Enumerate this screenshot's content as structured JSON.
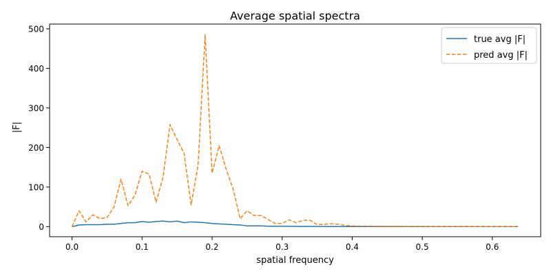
{
  "chart_data": {
    "type": "line",
    "title": "Average spatial spectra",
    "xlabel": "spatial frequency",
    "ylabel": "|F|",
    "xlim": [
      -0.032,
      0.669
    ],
    "ylim": [
      -25.5,
      512.0
    ],
    "xticks": [
      0.0,
      0.1,
      0.2,
      0.3,
      0.4,
      0.5,
      0.6
    ],
    "xtick_labels": [
      "0.0",
      "0.1",
      "0.2",
      "0.3",
      "0.4",
      "0.5",
      "0.6"
    ],
    "yticks": [
      0,
      100,
      200,
      300,
      400,
      500
    ],
    "ytick_labels": [
      "0",
      "100",
      "200",
      "300",
      "400",
      "500"
    ],
    "grid": false,
    "legend_position": "top-right",
    "series": [
      {
        "name": "true avg |F|",
        "color": "#1f77b4",
        "style": "solid",
        "points": [
          [
            0.0,
            0
          ],
          [
            0.01,
            4
          ],
          [
            0.02,
            5
          ],
          [
            0.03,
            5
          ],
          [
            0.04,
            5
          ],
          [
            0.05,
            6
          ],
          [
            0.06,
            6
          ],
          [
            0.07,
            8
          ],
          [
            0.08,
            10
          ],
          [
            0.09,
            10
          ],
          [
            0.1,
            13
          ],
          [
            0.11,
            11
          ],
          [
            0.12,
            13
          ],
          [
            0.13,
            14
          ],
          [
            0.14,
            12
          ],
          [
            0.15,
            14
          ],
          [
            0.16,
            10
          ],
          [
            0.17,
            12
          ],
          [
            0.18,
            11
          ],
          [
            0.19,
            10
          ],
          [
            0.2,
            8
          ],
          [
            0.21,
            7
          ],
          [
            0.22,
            6
          ],
          [
            0.23,
            5
          ],
          [
            0.24,
            4
          ],
          [
            0.25,
            2
          ],
          [
            0.26,
            2
          ],
          [
            0.27,
            2
          ],
          [
            0.28,
            1
          ],
          [
            0.29,
            1
          ],
          [
            0.3,
            1
          ],
          [
            0.32,
            0.5
          ],
          [
            0.35,
            0.3
          ],
          [
            0.4,
            0.2
          ],
          [
            0.5,
            0.1
          ],
          [
            0.637,
            0.1
          ]
        ]
      },
      {
        "name": "pred avg |F|",
        "color": "#ff7f0e",
        "style": "dashed",
        "points": [
          [
            0.0,
            0
          ],
          [
            0.01,
            40
          ],
          [
            0.02,
            12
          ],
          [
            0.03,
            30
          ],
          [
            0.04,
            20
          ],
          [
            0.05,
            23
          ],
          [
            0.06,
            50
          ],
          [
            0.07,
            120
          ],
          [
            0.08,
            53
          ],
          [
            0.09,
            80
          ],
          [
            0.1,
            140
          ],
          [
            0.11,
            133
          ],
          [
            0.12,
            62
          ],
          [
            0.13,
            125
          ],
          [
            0.14,
            258
          ],
          [
            0.15,
            220
          ],
          [
            0.16,
            185
          ],
          [
            0.17,
            55
          ],
          [
            0.18,
            155
          ],
          [
            0.19,
            485
          ],
          [
            0.2,
            135
          ],
          [
            0.21,
            205
          ],
          [
            0.22,
            145
          ],
          [
            0.23,
            95
          ],
          [
            0.24,
            20
          ],
          [
            0.25,
            40
          ],
          [
            0.26,
            28
          ],
          [
            0.27,
            28
          ],
          [
            0.28,
            18
          ],
          [
            0.29,
            8
          ],
          [
            0.3,
            8
          ],
          [
            0.31,
            17
          ],
          [
            0.32,
            10
          ],
          [
            0.33,
            16
          ],
          [
            0.34,
            16
          ],
          [
            0.35,
            5
          ],
          [
            0.36,
            6
          ],
          [
            0.37,
            7
          ],
          [
            0.38,
            6
          ],
          [
            0.39,
            3
          ],
          [
            0.4,
            2
          ],
          [
            0.41,
            1.5
          ],
          [
            0.42,
            1.5
          ],
          [
            0.44,
            1
          ],
          [
            0.46,
            0.8
          ],
          [
            0.5,
            0.5
          ],
          [
            0.55,
            0.3
          ],
          [
            0.6,
            0.2
          ],
          [
            0.637,
            0.2
          ]
        ]
      }
    ]
  }
}
